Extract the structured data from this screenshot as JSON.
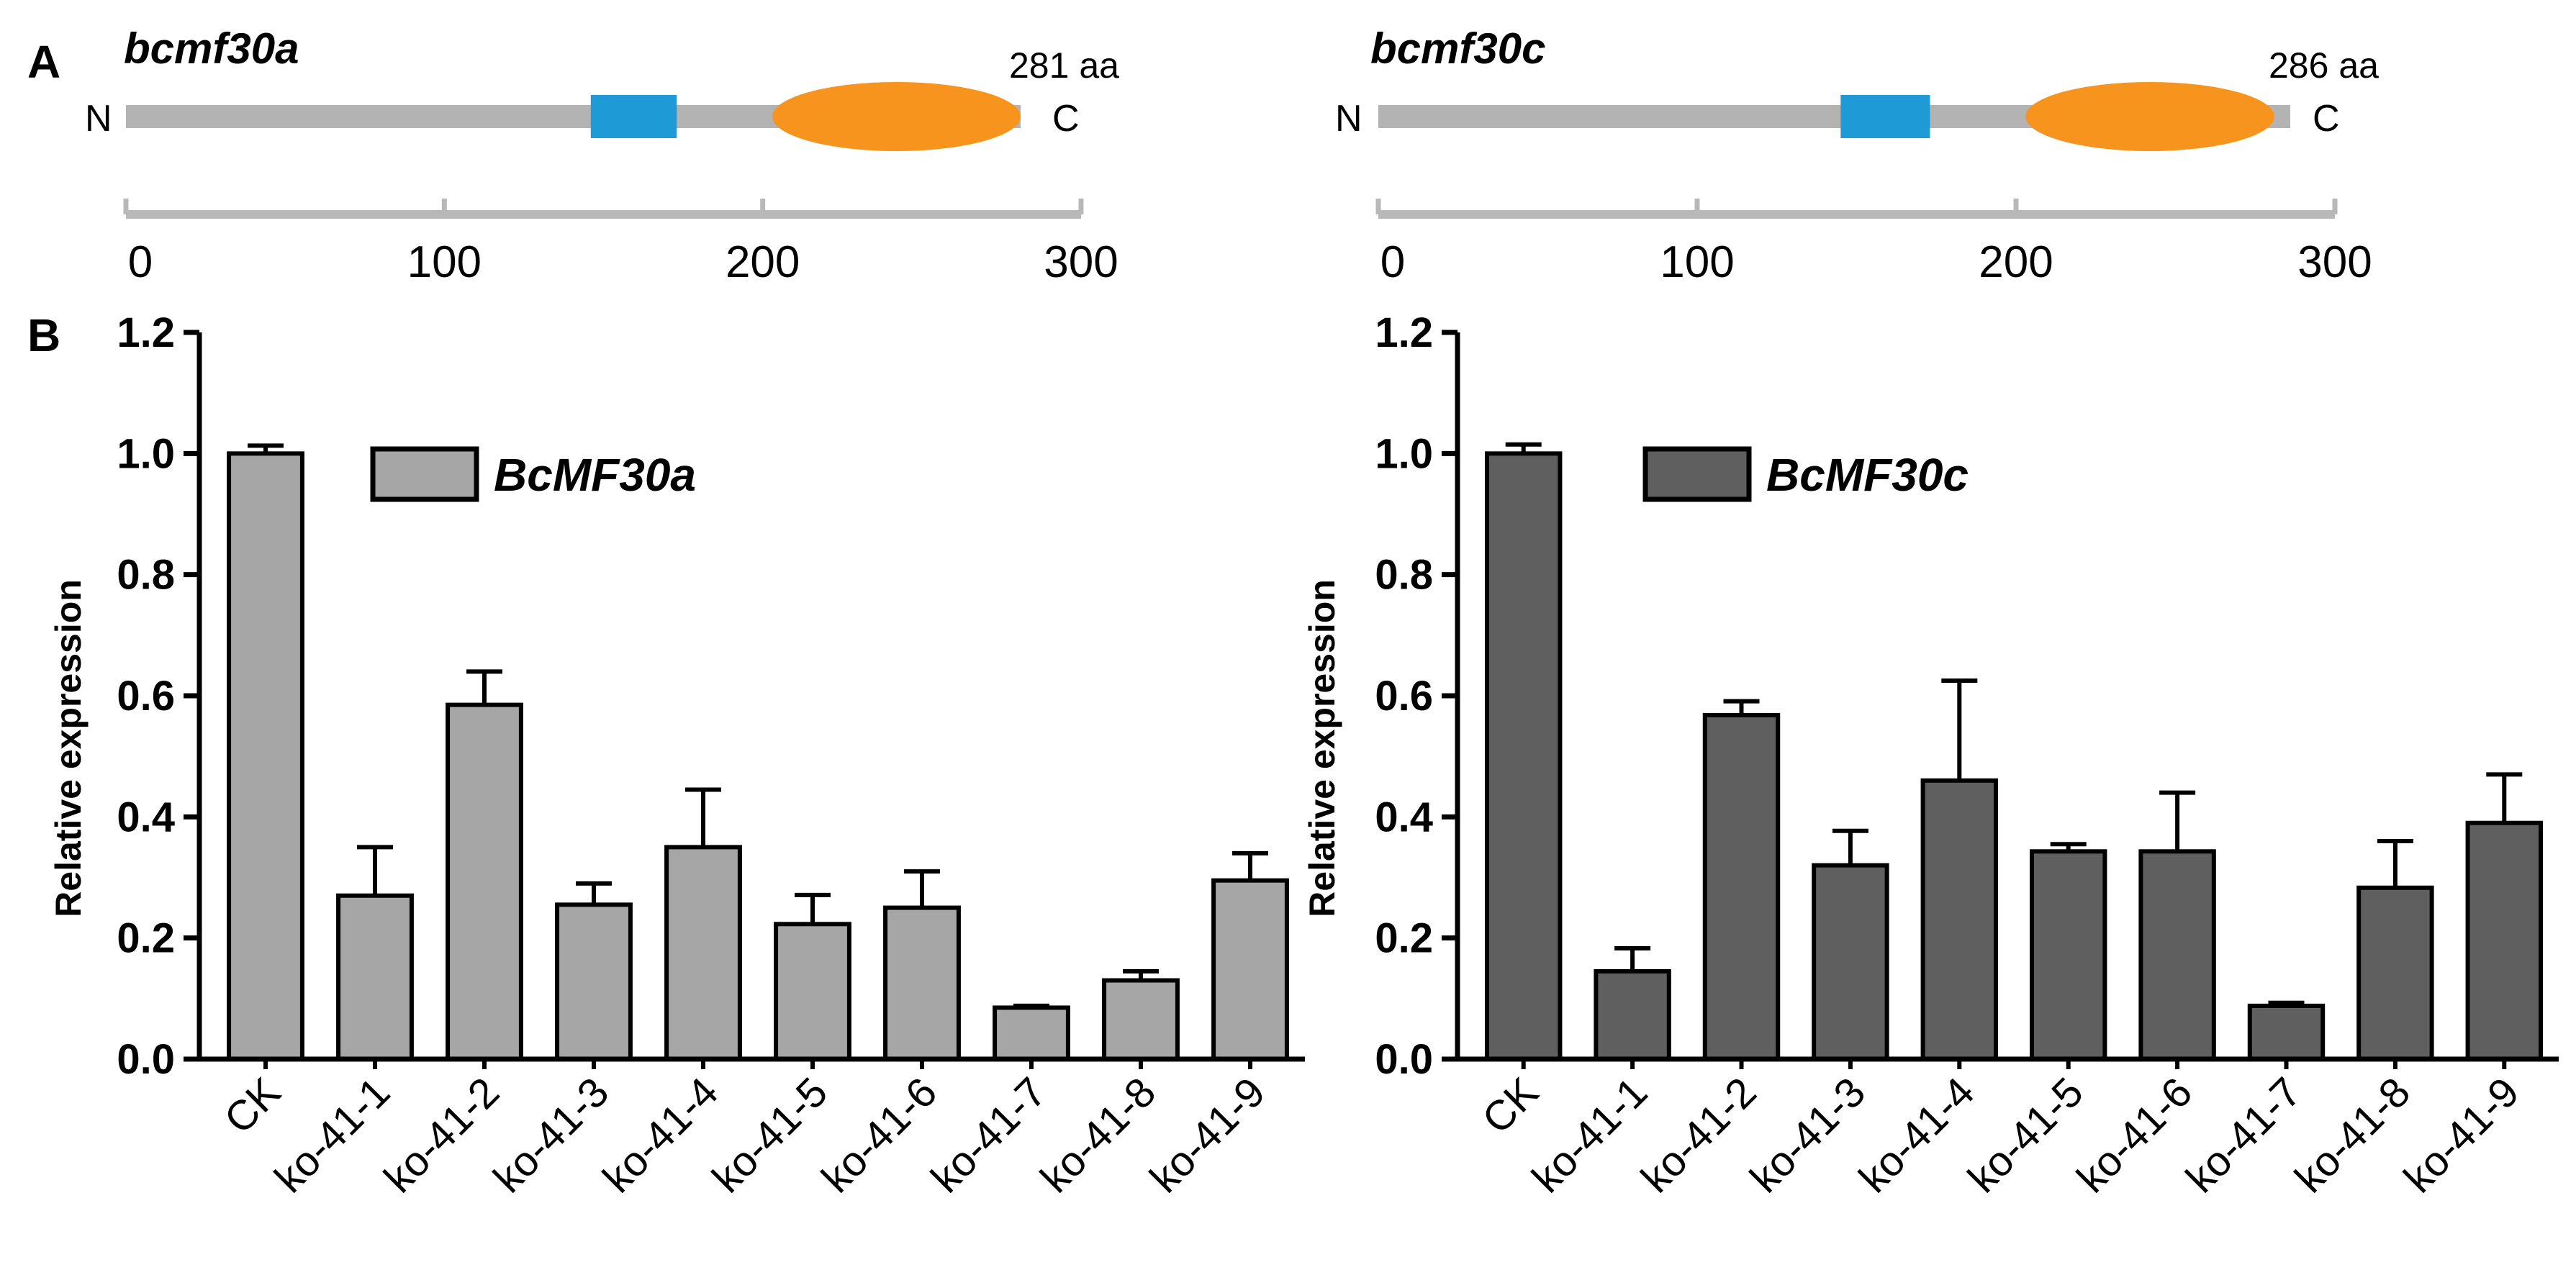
{
  "panel_labels": {
    "a": "A",
    "b": "B"
  },
  "domain_colors": {
    "backbone": "#b3b3b3",
    "box": "#1e9ad6",
    "ellipse": "#f7941d",
    "scale_bar": "#b8b8b8"
  },
  "proteins": [
    {
      "gene": "bcmf30a",
      "n_label": "N",
      "c_label": "C",
      "length_label": "281 aa",
      "length": 281,
      "box_domain": [
        146,
        173
      ],
      "ellipse_domain": [
        203,
        281
      ],
      "scale": {
        "min": 0,
        "max": 300,
        "ticks": [
          "0",
          "100",
          "200",
          "300"
        ],
        "tick_values": [
          0,
          100,
          200,
          300
        ]
      }
    },
    {
      "gene": "bcmf30c",
      "n_label": "N",
      "c_label": "C",
      "length_label": "286 aa",
      "length": 286,
      "box_domain": [
        145,
        173
      ],
      "ellipse_domain": [
        203,
        281
      ],
      "scale": {
        "min": 0,
        "max": 300,
        "ticks": [
          "0",
          "100",
          "200",
          "300"
        ],
        "tick_values": [
          0,
          100,
          200,
          300
        ]
      }
    }
  ],
  "chart_data": [
    {
      "type": "bar",
      "title": "",
      "xlabel": "",
      "ylabel": "Relative expression",
      "ylim": [
        0,
        1.2
      ],
      "yticks": [
        "0.0",
        "0.2",
        "0.4",
        "0.6",
        "0.8",
        "1.0",
        "1.2"
      ],
      "ytick_values": [
        0,
        0.2,
        0.4,
        0.6,
        0.8,
        1.0,
        1.2
      ],
      "categories": [
        "CK",
        "ko-41-1",
        "ko-41-2",
        "ko-41-3",
        "ko-41-4",
        "ko-41-5",
        "ko-41-6",
        "ko-41-7",
        "ko-41-8",
        "ko-41-9"
      ],
      "series": [
        {
          "name": "BcMF30a",
          "color": "#a6a6a6",
          "values": [
            1.0,
            0.27,
            0.585,
            0.255,
            0.35,
            0.223,
            0.25,
            0.085,
            0.13,
            0.295
          ],
          "errors": [
            0.013,
            0.08,
            0.055,
            0.035,
            0.095,
            0.048,
            0.06,
            0.003,
            0.015,
            0.045
          ]
        }
      ],
      "legend": "top-center"
    },
    {
      "type": "bar",
      "title": "",
      "xlabel": "",
      "ylabel": "Relative expression",
      "ylim": [
        0,
        1.2
      ],
      "yticks": [
        "0.0",
        "0.2",
        "0.4",
        "0.6",
        "0.8",
        "1.0",
        "1.2"
      ],
      "ytick_values": [
        0,
        0.2,
        0.4,
        0.6,
        0.8,
        1.0,
        1.2
      ],
      "categories": [
        "CK",
        "ko-41-1",
        "ko-41-2",
        "ko-41-3",
        "ko-41-4",
        "ko-41-5",
        "ko-41-6",
        "ko-41-7",
        "ko-41-8",
        "ko-41-9"
      ],
      "series": [
        {
          "name": "BcMF30c",
          "color": "#5f5f5f",
          "values": [
            1.0,
            0.145,
            0.568,
            0.32,
            0.46,
            0.343,
            0.343,
            0.088,
            0.283,
            0.39
          ],
          "errors": [
            0.015,
            0.038,
            0.023,
            0.057,
            0.165,
            0.012,
            0.097,
            0.005,
            0.077,
            0.08
          ]
        }
      ],
      "legend": "top-center"
    }
  ]
}
